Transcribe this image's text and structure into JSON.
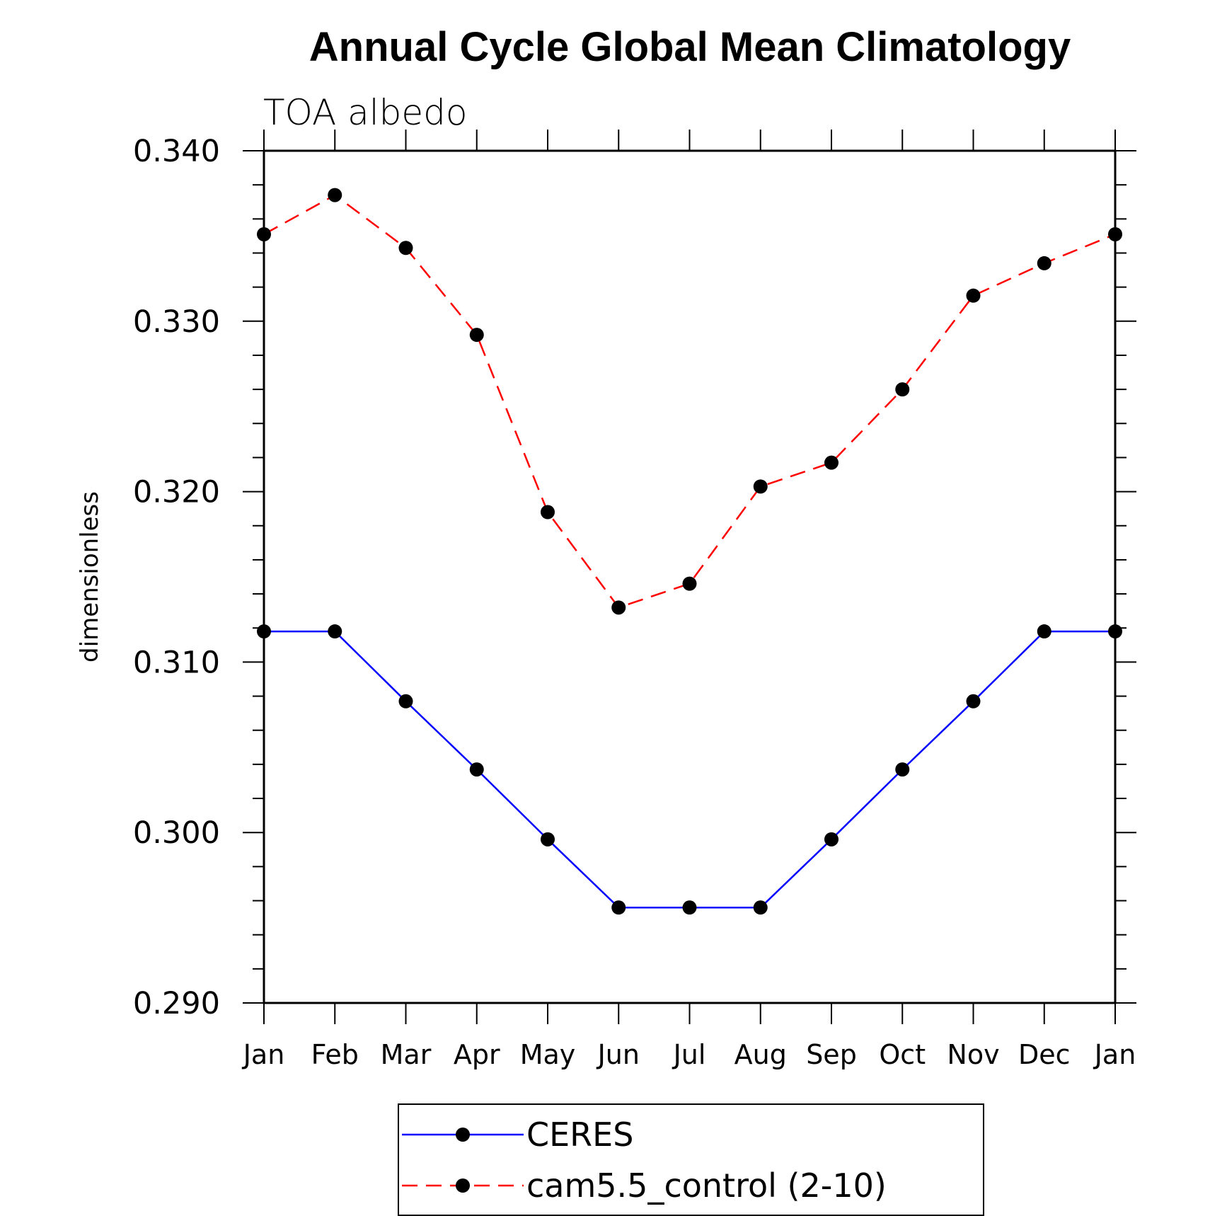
{
  "chart_data": {
    "type": "line",
    "title": "Annual Cycle Global Mean Climatology",
    "subtitle": "TOA albedo",
    "xlabel": "",
    "ylabel": "dimensionless",
    "categories": [
      "Jan",
      "Feb",
      "Mar",
      "Apr",
      "May",
      "Jun",
      "Jul",
      "Aug",
      "Sep",
      "Oct",
      "Nov",
      "Dec",
      "Jan"
    ],
    "ylim": [
      0.29,
      0.34
    ],
    "yticks": [
      "0.290",
      "0.300",
      "0.310",
      "0.320",
      "0.330",
      "0.340"
    ],
    "legend_position": "bottom",
    "grid": false,
    "series": [
      {
        "name": "CERES",
        "color": "#0000ff",
        "dash": "solid",
        "marker": "filled-circle",
        "values": [
          0.3118,
          0.3118,
          0.3077,
          0.3037,
          0.2996,
          0.2956,
          0.2956,
          0.2956,
          0.2996,
          0.3037,
          0.3077,
          0.3118,
          0.3118
        ]
      },
      {
        "name": "cam5.5_control (2-10)",
        "color": "#ff0000",
        "dash": "dashed",
        "marker": "filled-circle",
        "values": [
          0.3351,
          0.3374,
          0.3343,
          0.3292,
          0.3188,
          0.3132,
          0.3146,
          0.3203,
          0.3217,
          0.326,
          0.3315,
          0.3334,
          0.3351
        ]
      }
    ]
  }
}
